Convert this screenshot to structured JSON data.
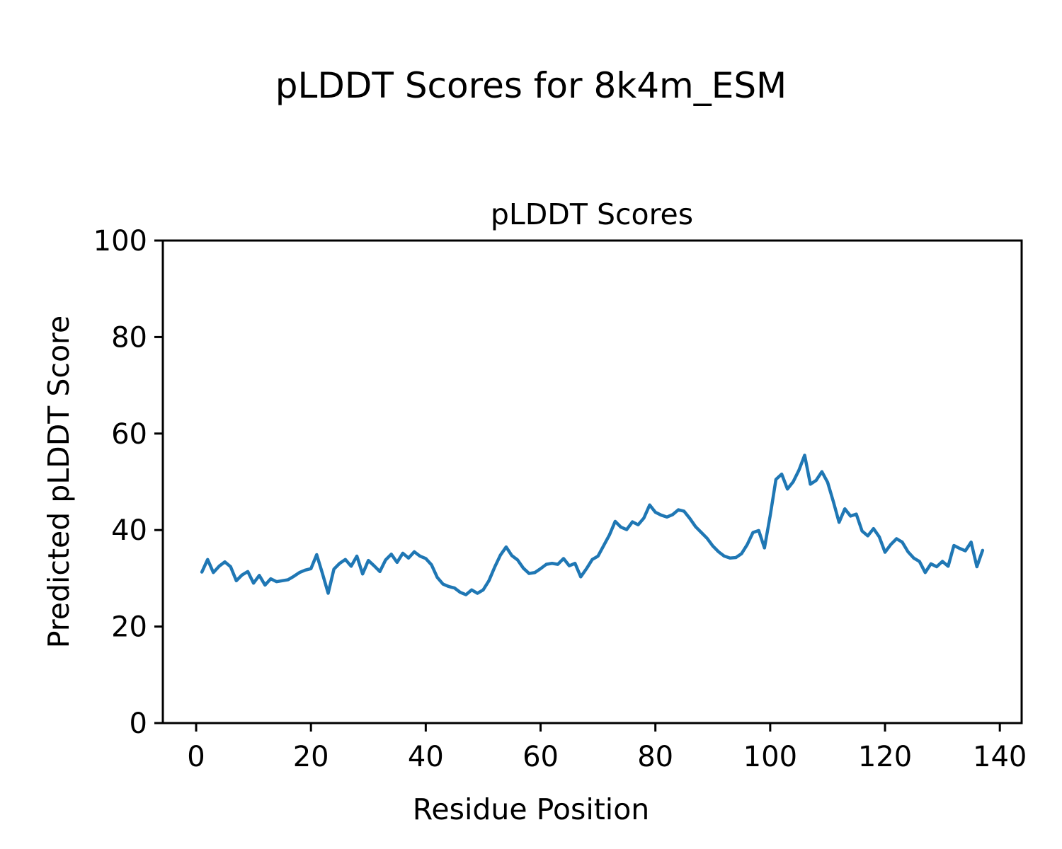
{
  "figure": {
    "suptitle": "pLDDT Scores for 8k4m_ESM",
    "background_color": "#ffffff",
    "text_color": "#000000"
  },
  "chart_data": {
    "type": "line",
    "title": "pLDDT Scores",
    "xlabel": "Residue Position",
    "ylabel": "Predicted pLDDT Score",
    "line_color": "#1f77b4",
    "grid": false,
    "legend": "none",
    "xlim": [
      -5.8,
      143.8
    ],
    "ylim": [
      0,
      100
    ],
    "x_ticks": [
      0,
      20,
      40,
      60,
      80,
      100,
      120,
      140
    ],
    "y_ticks": [
      0,
      20,
      40,
      60,
      80,
      100
    ],
    "series_name": "pLDDT per residue",
    "x": [
      1,
      2,
      3,
      4,
      5,
      6,
      7,
      8,
      9,
      10,
      11,
      12,
      13,
      14,
      15,
      16,
      17,
      18,
      19,
      20,
      21,
      22,
      23,
      24,
      25,
      26,
      27,
      28,
      29,
      30,
      31,
      32,
      33,
      34,
      35,
      36,
      37,
      38,
      39,
      40,
      41,
      42,
      43,
      44,
      45,
      46,
      47,
      48,
      49,
      50,
      51,
      52,
      53,
      54,
      55,
      56,
      57,
      58,
      59,
      60,
      61,
      62,
      63,
      64,
      65,
      66,
      67,
      68,
      69,
      70,
      71,
      72,
      73,
      74,
      75,
      76,
      77,
      78,
      79,
      80,
      81,
      82,
      83,
      84,
      85,
      86,
      87,
      88,
      89,
      90,
      91,
      92,
      93,
      94,
      95,
      96,
      97,
      98,
      99,
      100,
      101,
      102,
      103,
      104,
      105,
      106,
      107,
      108,
      109,
      110,
      111,
      112,
      113,
      114,
      115,
      116,
      117,
      118,
      119,
      120,
      121,
      122,
      123,
      124,
      125,
      126,
      127,
      128,
      129,
      130,
      131,
      132,
      133,
      134,
      135,
      136,
      137
    ],
    "y": [
      31.3,
      33.9,
      31.2,
      32.5,
      33.4,
      32.4,
      29.5,
      30.7,
      31.4,
      29.0,
      30.6,
      28.6,
      29.9,
      29.3,
      29.5,
      29.7,
      30.4,
      31.2,
      31.7,
      32.0,
      34.9,
      31.0,
      26.9,
      31.9,
      33.1,
      33.9,
      32.5,
      34.6,
      30.9,
      33.7,
      32.6,
      31.4,
      33.8,
      35.0,
      33.3,
      35.2,
      34.2,
      35.5,
      34.6,
      34.1,
      32.8,
      30.2,
      28.8,
      28.3,
      28.0,
      27.1,
      26.6,
      27.6,
      26.9,
      27.6,
      29.5,
      32.3,
      34.8,
      36.5,
      34.7,
      33.8,
      32.1,
      31.0,
      31.2,
      32.0,
      32.9,
      33.1,
      32.9,
      34.1,
      32.6,
      33.1,
      30.3,
      32.0,
      33.9,
      34.6,
      36.8,
      39.0,
      41.8,
      40.6,
      40.1,
      41.7,
      41.1,
      42.5,
      45.2,
      43.7,
      43.1,
      42.7,
      43.2,
      44.2,
      43.9,
      42.4,
      40.7,
      39.5,
      38.3,
      36.7,
      35.5,
      34.6,
      34.2,
      34.3,
      35.1,
      37.0,
      39.5,
      39.9,
      36.3,
      43.0,
      50.5,
      51.6,
      48.5,
      50.0,
      52.4,
      55.5,
      49.5,
      50.3,
      52.1,
      49.9,
      45.9,
      41.6,
      44.4,
      42.9,
      43.3,
      39.8,
      38.8,
      40.3,
      38.6,
      35.4,
      37.0,
      38.2,
      37.5,
      35.5,
      34.2,
      33.5,
      31.2,
      33.0,
      32.4,
      33.5,
      32.5,
      36.8,
      36.2,
      35.7,
      37.5,
      32.4,
      35.8
    ]
  }
}
